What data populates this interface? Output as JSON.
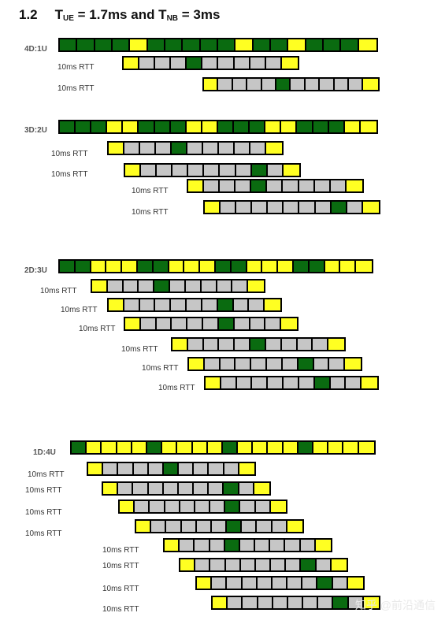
{
  "title": {
    "number": "1.2",
    "t1": "T",
    "t1_sub": "UE",
    "t1_rest": " = 1.7ms and T",
    "t2_sub": "NB",
    "t2_rest": " = 3ms"
  },
  "colors": {
    "green": "#0a6b10",
    "yellow": "#ffff22",
    "gray": "#c6c6c6"
  },
  "sections": [
    {
      "label": "4D:1U",
      "main": "GGGGYGGGGGYGGYGGGY",
      "rtt_label": "10ms RTT",
      "rows": [
        "YSSSGSSSSSY",
        "YSSSSGSSSSSY"
      ]
    },
    {
      "label": "3D:2U",
      "main": "GGGYYGGGYYGGGYYGGGYY",
      "rtt_label": "10ms RTT",
      "rows": [
        "YSSSGSSSSSY",
        "YSSSSSSSGSY",
        "YSSSGSSSSSY",
        "YSSSSSSSGSY"
      ]
    },
    {
      "label": "2D:3U",
      "main": "GGYYYGGYYYGGYYYGGYYY",
      "rtt_label": "10ms RTT",
      "rows": [
        "YSSSGSSSSSY",
        "YSSSSSSGSSY",
        "YSSSSSGSSSY",
        "YSSSSGSSSSY",
        "YSSSSSSGSSY",
        "YSSSSSSGSSY"
      ]
    },
    {
      "label": "1D:4U",
      "main": "GYYYYGYYYYGYYYYGYYYY",
      "rtt_label": "10ms RTT",
      "rows": [
        "YSSSSGSSSSY",
        "YSSSSSSSGSY",
        "YSSSSSSGSSY",
        "YSSSSSGSSSY",
        "YSSSGSSSSSY",
        "YSSSSSSSGSY",
        "YSSSSSSSGSY",
        "YSSSSSSSGSY"
      ]
    }
  ],
  "watermark": "知乎 @前沿通信"
}
